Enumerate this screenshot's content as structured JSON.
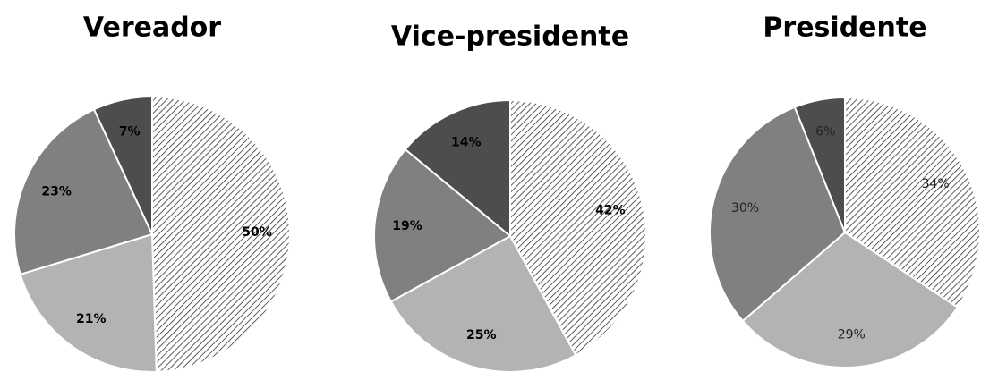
{
  "chart_data": [
    {
      "type": "pie",
      "title": "Vereador",
      "values": [
        50,
        21,
        23,
        7
      ],
      "value_labels": [
        "50%",
        "21%",
        "23%",
        "7%"
      ],
      "colors": [
        "hatch",
        "#b3b3b3",
        "#808080",
        "#4d4d4d"
      ]
    },
    {
      "type": "pie",
      "title": "Vice-presidente",
      "values": [
        42,
        25,
        19,
        14
      ],
      "value_labels": [
        "42%",
        "25%",
        "19%",
        "14%"
      ],
      "colors": [
        "hatch",
        "#b3b3b3",
        "#808080",
        "#4d4d4d"
      ]
    },
    {
      "type": "pie",
      "title": "Presidente",
      "values": [
        34,
        29,
        30,
        6
      ],
      "value_labels": [
        "34%",
        "29%",
        "30%",
        "6%"
      ],
      "colors": [
        "hatch",
        "#b3b3b3",
        "#808080",
        "#4d4d4d"
      ]
    }
  ]
}
